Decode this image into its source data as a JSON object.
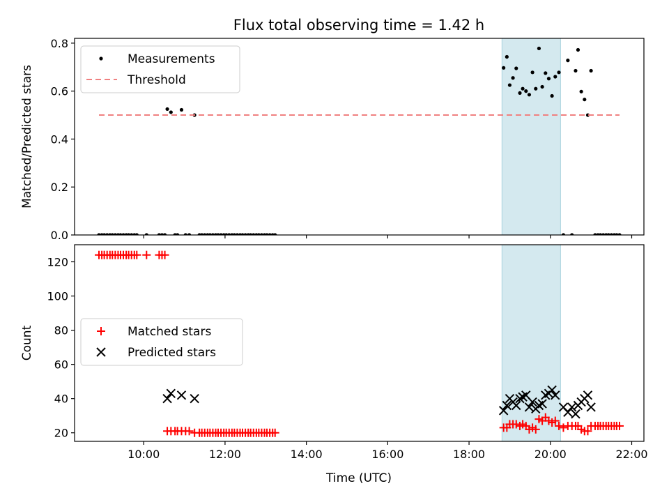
{
  "chart_data": {
    "title": "Flux total observing time = 1.42 h",
    "xlabel": "Time (UTC)",
    "x_unit": "hours (UTC)",
    "xlim": [
      8.3,
      22.3
    ],
    "x_ticks": [
      {
        "value": 10,
        "label": "10:00"
      },
      {
        "value": 12,
        "label": "12:00"
      },
      {
        "value": 14,
        "label": "14:00"
      },
      {
        "value": 16,
        "label": "16:00"
      },
      {
        "value": 18,
        "label": "18:00"
      },
      {
        "value": 20,
        "label": "20:00"
      },
      {
        "value": 22,
        "label": "22:00"
      }
    ],
    "highlight_span": [
      18.81,
      20.25
    ],
    "highlight_color": "#d4e9ef",
    "panels": [
      {
        "type": "scatter",
        "ylabel": "Matched/Predicted stars",
        "ylim": [
          0,
          0.82
        ],
        "y_ticks": [
          {
            "value": 0.0,
            "label": "0.0"
          },
          {
            "value": 0.2,
            "label": "0.2"
          },
          {
            "value": 0.4,
            "label": "0.4"
          },
          {
            "value": 0.6,
            "label": "0.6"
          },
          {
            "value": 0.8,
            "label": "0.8"
          }
        ],
        "legend_position": "top-left",
        "series": [
          {
            "name": "Measurements",
            "kind": "dot",
            "color": "#000000",
            "points": [
              [
                8.9,
                0
              ],
              [
                8.97,
                0
              ],
              [
                9.03,
                0
              ],
              [
                9.1,
                0
              ],
              [
                9.17,
                0
              ],
              [
                9.23,
                0
              ],
              [
                9.3,
                0
              ],
              [
                9.37,
                0
              ],
              [
                9.43,
                0
              ],
              [
                9.5,
                0
              ],
              [
                9.57,
                0
              ],
              [
                9.63,
                0
              ],
              [
                9.7,
                0
              ],
              [
                9.77,
                0
              ],
              [
                9.83,
                0
              ],
              [
                10.07,
                0
              ],
              [
                10.38,
                0
              ],
              [
                10.45,
                0
              ],
              [
                10.52,
                0
              ],
              [
                10.58,
                0.525
              ],
              [
                10.67,
                0.512
              ],
              [
                10.77,
                0
              ],
              [
                10.83,
                0
              ],
              [
                10.93,
                0.522
              ],
              [
                11.03,
                0
              ],
              [
                11.12,
                0
              ],
              [
                11.25,
                0.5
              ],
              [
                11.37,
                0
              ],
              [
                11.43,
                0
              ],
              [
                11.5,
                0
              ],
              [
                11.57,
                0
              ],
              [
                11.63,
                0
              ],
              [
                11.7,
                0
              ],
              [
                11.77,
                0
              ],
              [
                11.83,
                0
              ],
              [
                11.9,
                0
              ],
              [
                11.97,
                0
              ],
              [
                12.03,
                0
              ],
              [
                12.1,
                0
              ],
              [
                12.17,
                0
              ],
              [
                12.23,
                0
              ],
              [
                12.3,
                0
              ],
              [
                12.37,
                0
              ],
              [
                12.43,
                0
              ],
              [
                12.5,
                0
              ],
              [
                12.57,
                0
              ],
              [
                12.63,
                0
              ],
              [
                12.7,
                0
              ],
              [
                12.77,
                0
              ],
              [
                12.83,
                0
              ],
              [
                12.9,
                0
              ],
              [
                12.97,
                0
              ],
              [
                13.03,
                0
              ],
              [
                13.1,
                0
              ],
              [
                13.17,
                0
              ],
              [
                13.23,
                0
              ],
              [
                18.85,
                0.697
              ],
              [
                18.93,
                0.743
              ],
              [
                19.0,
                0.625
              ],
              [
                19.08,
                0.655
              ],
              [
                19.16,
                0.695
              ],
              [
                19.25,
                0.592
              ],
              [
                19.32,
                0.61
              ],
              [
                19.4,
                0.6
              ],
              [
                19.48,
                0.585
              ],
              [
                19.56,
                0.678
              ],
              [
                19.64,
                0.61
              ],
              [
                19.72,
                0.778
              ],
              [
                19.8,
                0.618
              ],
              [
                19.88,
                0.675
              ],
              [
                19.96,
                0.652
              ],
              [
                20.04,
                0.58
              ],
              [
                20.12,
                0.66
              ],
              [
                20.21,
                0.678
              ],
              [
                20.32,
                0
              ],
              [
                20.43,
                0.728
              ],
              [
                20.53,
                0
              ],
              [
                20.62,
                0.685
              ],
              [
                20.68,
                0.772
              ],
              [
                20.76,
                0.598
              ],
              [
                20.84,
                0.565
              ],
              [
                20.92,
                0.5
              ],
              [
                21.0,
                0.685
              ],
              [
                21.1,
                0
              ],
              [
                21.17,
                0
              ],
              [
                21.23,
                0
              ],
              [
                21.3,
                0
              ],
              [
                21.37,
                0
              ],
              [
                21.43,
                0
              ],
              [
                21.5,
                0
              ],
              [
                21.57,
                0
              ],
              [
                21.63,
                0
              ],
              [
                21.7,
                0
              ]
            ]
          },
          {
            "name": "Threshold",
            "kind": "dashed-line",
            "color": "#f08080",
            "x": [
              8.9,
              21.7
            ],
            "y": [
              0.5,
              0.5
            ]
          }
        ]
      },
      {
        "type": "scatter",
        "ylabel": "Count",
        "ylim": [
          15,
          130
        ],
        "y_ticks": [
          {
            "value": 20,
            "label": "20"
          },
          {
            "value": 40,
            "label": "40"
          },
          {
            "value": 60,
            "label": "60"
          },
          {
            "value": 80,
            "label": "80"
          },
          {
            "value": 100,
            "label": "100"
          },
          {
            "value": 120,
            "label": "120"
          }
        ],
        "legend_position": "center-left",
        "series": [
          {
            "name": "Matched stars",
            "kind": "plus",
            "color": "#ff0000",
            "points": [
              [
                8.9,
                124
              ],
              [
                8.97,
                124
              ],
              [
                9.03,
                124
              ],
              [
                9.1,
                124
              ],
              [
                9.17,
                124
              ],
              [
                9.23,
                124
              ],
              [
                9.3,
                124
              ],
              [
                9.37,
                124
              ],
              [
                9.43,
                124
              ],
              [
                9.5,
                124
              ],
              [
                9.57,
                124
              ],
              [
                9.63,
                124
              ],
              [
                9.7,
                124
              ],
              [
                9.77,
                124
              ],
              [
                9.83,
                124
              ],
              [
                10.07,
                124
              ],
              [
                10.38,
                124
              ],
              [
                10.45,
                124
              ],
              [
                10.52,
                124
              ],
              [
                10.58,
                21
              ],
              [
                10.67,
                21
              ],
              [
                10.77,
                21
              ],
              [
                10.83,
                21
              ],
              [
                10.93,
                21
              ],
              [
                11.03,
                21
              ],
              [
                11.12,
                21
              ],
              [
                11.25,
                20
              ],
              [
                11.37,
                20
              ],
              [
                11.43,
                20
              ],
              [
                11.5,
                20
              ],
              [
                11.57,
                20
              ],
              [
                11.63,
                20
              ],
              [
                11.7,
                20
              ],
              [
                11.77,
                20
              ],
              [
                11.83,
                20
              ],
              [
                11.9,
                20
              ],
              [
                11.97,
                20
              ],
              [
                12.03,
                20
              ],
              [
                12.1,
                20
              ],
              [
                12.17,
                20
              ],
              [
                12.23,
                20
              ],
              [
                12.3,
                20
              ],
              [
                12.37,
                20
              ],
              [
                12.43,
                20
              ],
              [
                12.5,
                20
              ],
              [
                12.57,
                20
              ],
              [
                12.63,
                20
              ],
              [
                12.7,
                20
              ],
              [
                12.77,
                20
              ],
              [
                12.83,
                20
              ],
              [
                12.9,
                20
              ],
              [
                12.97,
                20
              ],
              [
                13.03,
                20
              ],
              [
                13.1,
                20
              ],
              [
                13.17,
                20
              ],
              [
                13.23,
                20
              ],
              [
                18.85,
                23
              ],
              [
                18.93,
                23
              ],
              [
                19.0,
                25
              ],
              [
                19.08,
                25
              ],
              [
                19.16,
                25
              ],
              [
                19.25,
                24
              ],
              [
                19.32,
                25
              ],
              [
                19.4,
                24
              ],
              [
                19.48,
                22
              ],
              [
                19.56,
                23
              ],
              [
                19.64,
                22
              ],
              [
                19.72,
                28
              ],
              [
                19.8,
                27
              ],
              [
                19.88,
                29
              ],
              [
                19.96,
                27
              ],
              [
                20.04,
                26
              ],
              [
                20.12,
                27
              ],
              [
                20.21,
                24
              ],
              [
                20.32,
                23
              ],
              [
                20.43,
                24
              ],
              [
                20.53,
                24
              ],
              [
                20.62,
                24
              ],
              [
                20.68,
                24
              ],
              [
                20.76,
                22
              ],
              [
                20.84,
                21
              ],
              [
                20.92,
                21
              ],
              [
                21.0,
                24
              ],
              [
                21.1,
                24
              ],
              [
                21.17,
                24
              ],
              [
                21.23,
                24
              ],
              [
                21.3,
                24
              ],
              [
                21.37,
                24
              ],
              [
                21.43,
                24
              ],
              [
                21.5,
                24
              ],
              [
                21.57,
                24
              ],
              [
                21.63,
                24
              ],
              [
                21.7,
                24
              ]
            ]
          },
          {
            "name": "Predicted stars",
            "kind": "x",
            "color": "#000000",
            "points": [
              [
                10.58,
                40
              ],
              [
                10.67,
                43
              ],
              [
                10.93,
                42
              ],
              [
                11.25,
                40
              ],
              [
                18.85,
                33
              ],
              [
                18.93,
                36
              ],
              [
                19.0,
                40
              ],
              [
                19.08,
                38
              ],
              [
                19.16,
                36
              ],
              [
                19.25,
                40
              ],
              [
                19.32,
                41
              ],
              [
                19.4,
                42
              ],
              [
                19.48,
                35
              ],
              [
                19.56,
                38
              ],
              [
                19.64,
                34
              ],
              [
                19.72,
                36
              ],
              [
                19.8,
                37
              ],
              [
                19.88,
                42
              ],
              [
                19.96,
                43
              ],
              [
                20.04,
                45
              ],
              [
                20.12,
                42
              ],
              [
                20.32,
                35
              ],
              [
                20.43,
                32
              ],
              [
                20.53,
                35
              ],
              [
                20.62,
                31
              ],
              [
                20.68,
                36
              ],
              [
                20.76,
                38
              ],
              [
                20.84,
                40
              ],
              [
                20.92,
                42
              ],
              [
                21.0,
                35
              ]
            ]
          }
        ]
      }
    ]
  }
}
